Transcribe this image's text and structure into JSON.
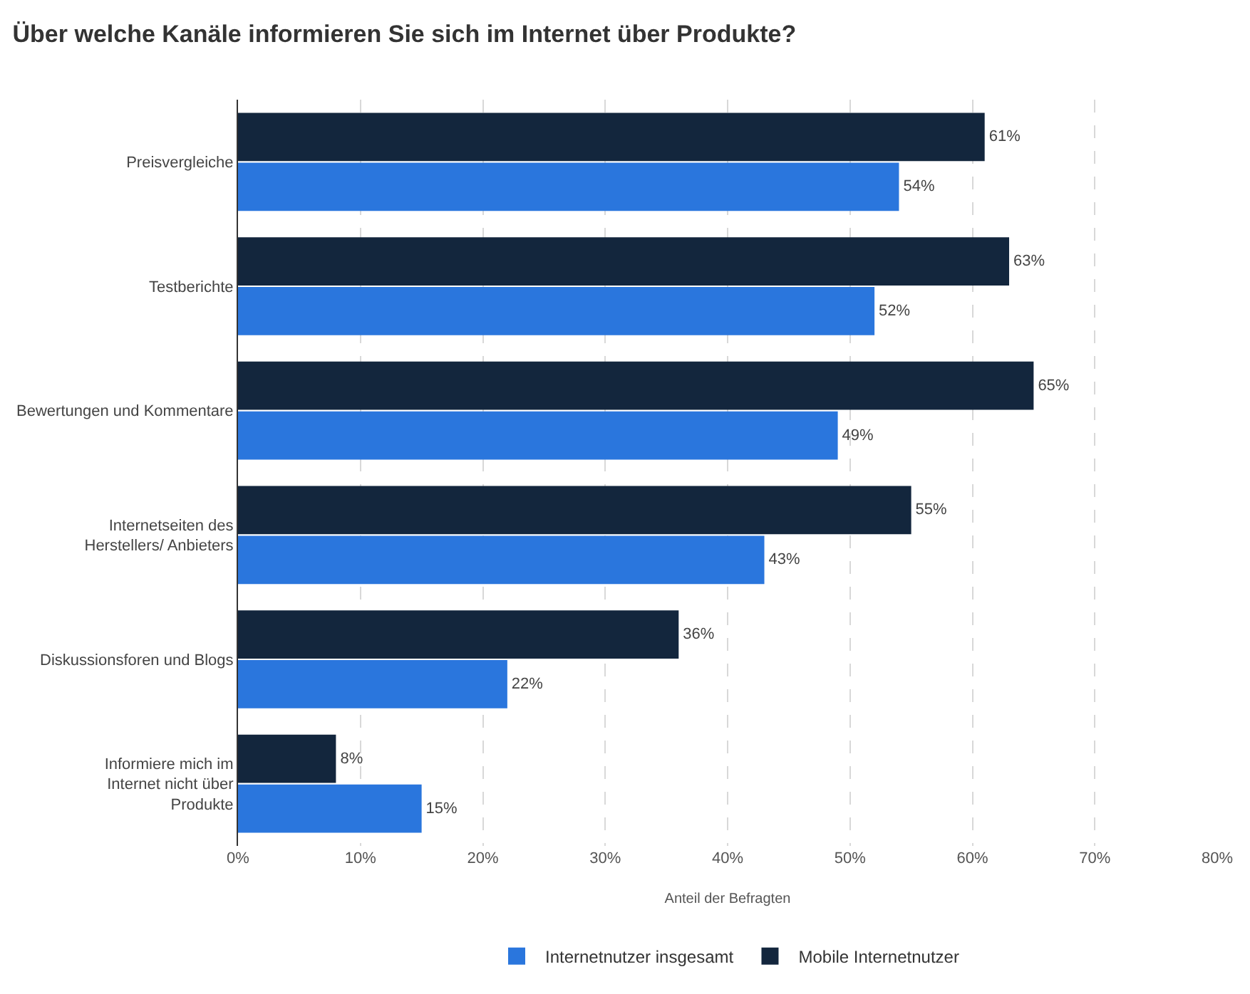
{
  "chart_data": {
    "type": "bar",
    "orientation": "horizontal",
    "title": "Über welche Kanäle informieren Sie sich im Internet über Produkte?",
    "xlabel": "Anteil der Befragten",
    "categories": [
      "Preisvergleiche",
      "Testberichte",
      "Bewertungen und Kommentare",
      "Internetseiten des Herstellers/ Anbieters",
      "Diskussionsforen und Blogs",
      "Informiere mich im Internet nicht über Produkte"
    ],
    "series": [
      {
        "name": "Mobile Internetnutzer",
        "color": "#13263d",
        "values": [
          61,
          63,
          65,
          55,
          36,
          8
        ],
        "value_labels": [
          "61%",
          "63%",
          "65%",
          "55%",
          "36%",
          "8%"
        ]
      },
      {
        "name": "Internetnutzer insgesamt",
        "color": "#2a76dd",
        "values": [
          54,
          52,
          49,
          43,
          22,
          15
        ],
        "value_labels": [
          "54%",
          "52%",
          "49%",
          "43%",
          "22%",
          "15%"
        ]
      }
    ],
    "xlim": [
      0,
      80
    ],
    "xticks": [
      {
        "value": 0,
        "label": "0%"
      },
      {
        "value": 10,
        "label": "10%"
      },
      {
        "value": 20,
        "label": "20%"
      },
      {
        "value": 30,
        "label": "30%"
      },
      {
        "value": 40,
        "label": "40%"
      },
      {
        "value": 50,
        "label": "50%"
      },
      {
        "value": 60,
        "label": "60%"
      },
      {
        "value": 70,
        "label": "70%"
      },
      {
        "value": 80,
        "label": "80%"
      }
    ],
    "grid": "x",
    "legend": "bottom"
  }
}
